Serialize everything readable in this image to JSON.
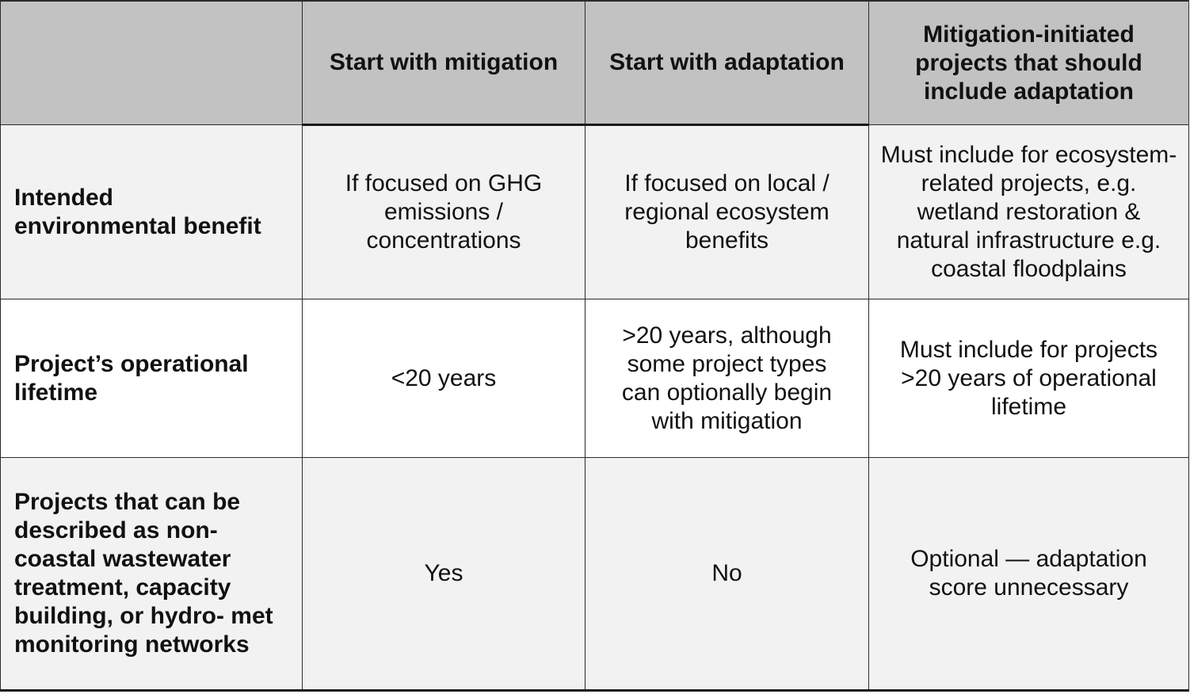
{
  "table": {
    "columns": [
      "",
      "Start with mitigation",
      "Start with adaptation",
      "Mitigation-initiated projects that should include adaptation"
    ],
    "rows": [
      {
        "label": "Intended environmental benefit",
        "cells": [
          "If focused on GHG emissions / concentrations",
          "If focused on local / regional ecosystem benefits",
          "Must include for ecosystem- related projects, e.g. wetland restoration & natural infrastructure e.g. coastal floodplains"
        ]
      },
      {
        "label": "Project’s operational lifetime",
        "cells": [
          "<20 years",
          ">20 years, although some project types can optionally begin with mitigation",
          "Must include for projects >20 years of operational lifetime"
        ]
      },
      {
        "label": "Projects that can be described as non-coastal wastewater treatment, capacity building, or hydro- met monitoring networks",
        "cells": [
          "Yes",
          "No",
          "Optional — adaptation score unnecessary"
        ]
      }
    ]
  }
}
